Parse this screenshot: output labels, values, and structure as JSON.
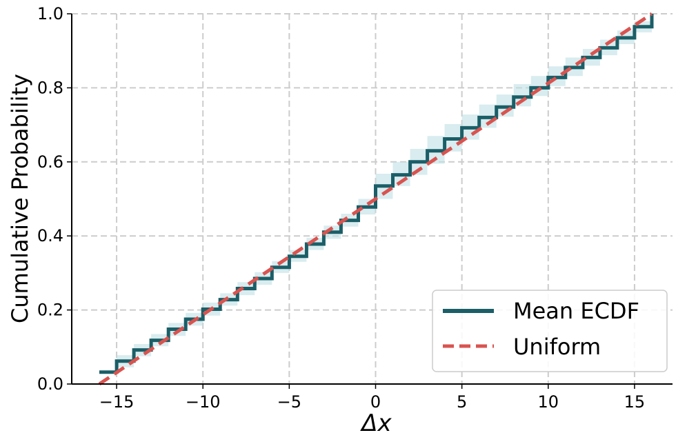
{
  "chart_data": {
    "type": "line",
    "xlabel": "Δx",
    "ylabel": "Cumulative Probability",
    "xlim": [
      -17.6,
      17.2
    ],
    "ylim": [
      0.0,
      1.0
    ],
    "xticks": [
      -15,
      -10,
      -5,
      0,
      5,
      10,
      15
    ],
    "xtick_labels": [
      "−15",
      "−10",
      "−5",
      "0",
      "5",
      "10",
      "15"
    ],
    "yticks": [
      0.0,
      0.2,
      0.4,
      0.6,
      0.8,
      1.0
    ],
    "ytick_labels": [
      "0.0",
      "0.2",
      "0.4",
      "0.6",
      "0.8",
      "1.0"
    ],
    "grid": true,
    "legend_position": "lower-right",
    "series": [
      {
        "name": "Mean ECDF",
        "style": "step",
        "color": "#1b5e67",
        "x": [
          -16,
          -15,
          -14,
          -13,
          -12,
          -11,
          -10,
          -9,
          -8,
          -7,
          -6,
          -5,
          -4,
          -3,
          -2,
          -1,
          0,
          1,
          2,
          3,
          4,
          5,
          6,
          7,
          8,
          9,
          10,
          11,
          12,
          13,
          14,
          15,
          16
        ],
        "y": [
          0.032,
          0.062,
          0.092,
          0.118,
          0.148,
          0.175,
          0.202,
          0.228,
          0.258,
          0.285,
          0.315,
          0.345,
          0.378,
          0.41,
          0.442,
          0.478,
          0.535,
          0.565,
          0.6,
          0.63,
          0.662,
          0.692,
          0.72,
          0.748,
          0.775,
          0.8,
          0.828,
          0.855,
          0.882,
          0.908,
          0.935,
          0.965,
          1.0
        ]
      },
      {
        "name": "Uniform",
        "style": "dashed",
        "color": "#d9534f",
        "x": [
          -16,
          16
        ],
        "y": [
          0.0,
          1.0
        ]
      }
    ],
    "band": {
      "color": "#bfe0e5",
      "x": [
        -15,
        -14,
        -13,
        -12,
        -11,
        -10,
        -9,
        -8,
        -7,
        -6,
        -5,
        -4,
        -3,
        -2,
        -1,
        0,
        1,
        2,
        3,
        4,
        5,
        6,
        7,
        8,
        9,
        10,
        11,
        12,
        13,
        14,
        15
      ],
      "lower": [
        0.045,
        0.075,
        0.102,
        0.13,
        0.158,
        0.185,
        0.212,
        0.24,
        0.268,
        0.3,
        0.33,
        0.362,
        0.392,
        0.425,
        0.458,
        0.5,
        0.535,
        0.565,
        0.595,
        0.628,
        0.66,
        0.692,
        0.722,
        0.75,
        0.778,
        0.805,
        0.832,
        0.86,
        0.888,
        0.918,
        0.95
      ],
      "upper": [
        0.078,
        0.108,
        0.135,
        0.165,
        0.192,
        0.22,
        0.245,
        0.275,
        0.302,
        0.332,
        0.362,
        0.395,
        0.428,
        0.46,
        0.5,
        0.568,
        0.6,
        0.635,
        0.67,
        0.702,
        0.728,
        0.755,
        0.782,
        0.81,
        0.832,
        0.858,
        0.882,
        0.905,
        0.93,
        0.955,
        0.98
      ]
    }
  }
}
